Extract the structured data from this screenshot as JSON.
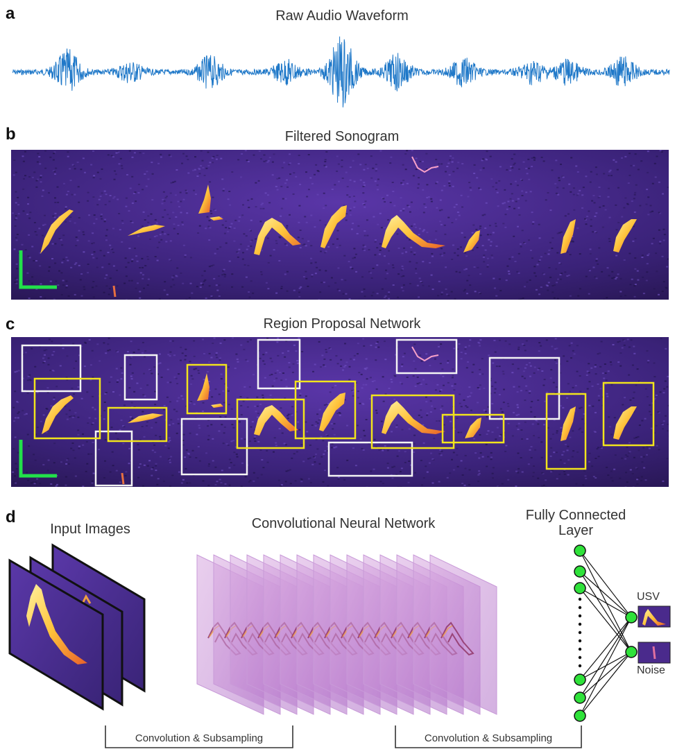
{
  "panels": {
    "a": {
      "label": "a",
      "title": "Raw Audio Waveform"
    },
    "b": {
      "label": "b",
      "title": "Filtered Sonogram"
    },
    "c": {
      "label": "c",
      "title": "Region Proposal Network"
    },
    "d": {
      "label": "d",
      "input_title": "Input Images",
      "cnn_title": "Convolutional Neural Network",
      "fc_title_line1": "Fully Connected",
      "fc_title_line2": "Layer",
      "output_usv": "USV",
      "output_noise": "Noise",
      "bracket_left": "Convolution & Subsampling",
      "bracket_right": "Convolution & Subsampling"
    }
  },
  "colors": {
    "waveform": "#1f78c8",
    "sonogram_bg": "#4a2a8c",
    "call": "#ffd25a",
    "call_edge": "#f07820",
    "scale_bar": "#22e04a",
    "box_yellow": "#f2e41c",
    "box_white": "#f4f4f4",
    "node": "#2fe23a"
  }
}
